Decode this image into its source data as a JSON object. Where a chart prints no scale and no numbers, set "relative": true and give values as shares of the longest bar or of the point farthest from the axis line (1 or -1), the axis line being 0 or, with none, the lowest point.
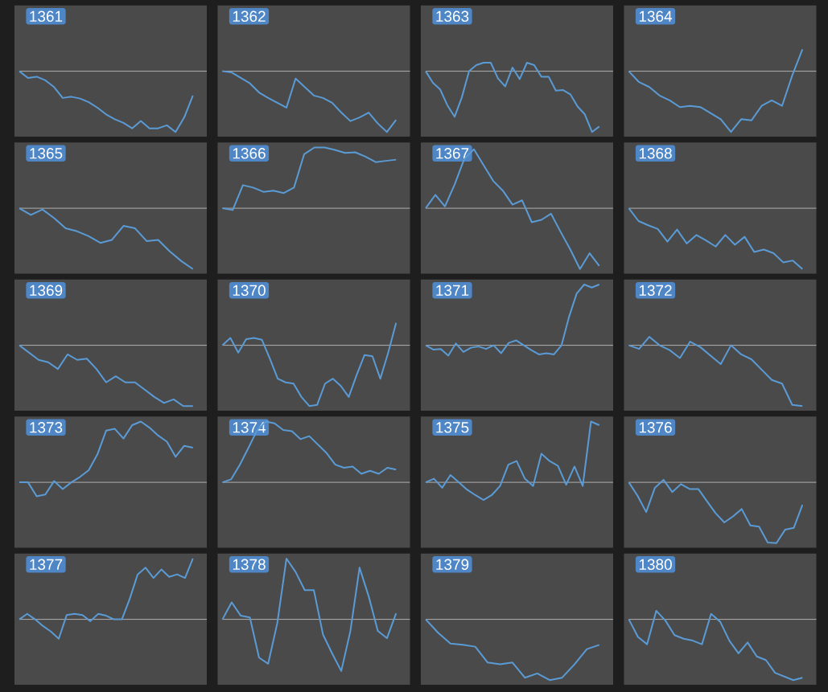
{
  "chart_data": [
    {
      "type": "line",
      "title": "1361",
      "categories": [
        null,
        null,
        null,
        null,
        null,
        null,
        null,
        null,
        null,
        null,
        null,
        null,
        null,
        null,
        null,
        null,
        null,
        null,
        null,
        null,
        null
      ],
      "values": [
        0,
        -0.11,
        -0.09,
        -0.15,
        -0.26,
        -0.44,
        -0.42,
        -0.45,
        -0.51,
        -0.6,
        -0.71,
        -0.79,
        -0.85,
        -0.94,
        -0.82,
        -0.94,
        -0.94,
        -0.89,
        -1,
        -0.76,
        -0.4
      ],
      "color": "#5b9bd5",
      "relative": true,
      "ref_lines": [
        {
          "axis": "y",
          "value": 0,
          "color": "#c8c8c8"
        }
      ]
    },
    {
      "type": "line",
      "title": "1362",
      "categories": [
        null,
        null,
        null,
        null,
        null,
        null,
        null,
        null,
        null,
        null,
        null,
        null,
        null,
        null,
        null,
        null,
        null,
        null,
        null,
        null
      ],
      "values": [
        0,
        -0.02,
        -0.11,
        -0.2,
        -0.35,
        -0.44,
        -0.52,
        -0.6,
        -0.12,
        -0.26,
        -0.4,
        -0.44,
        -0.52,
        -0.68,
        -0.82,
        -0.76,
        -0.68,
        -0.86,
        -1,
        -0.8
      ],
      "color": "#5b9bd5",
      "relative": true,
      "ref_lines": [
        {
          "axis": "y",
          "value": 0,
          "color": "#c8c8c8"
        }
      ]
    },
    {
      "type": "line",
      "title": "1363",
      "categories": [
        null,
        null,
        null,
        null,
        null,
        null,
        null,
        null,
        null,
        null,
        null,
        null,
        null,
        null,
        null,
        null,
        null,
        null,
        null,
        null,
        null,
        null,
        null,
        null,
        null
      ],
      "values": [
        0,
        -0.19,
        -0.3,
        -0.56,
        -0.75,
        -0.43,
        0,
        0.1,
        0.14,
        0.14,
        -0.12,
        -0.25,
        0.06,
        -0.13,
        0.14,
        0.1,
        -0.09,
        -0.09,
        -0.32,
        -0.31,
        -0.38,
        -0.58,
        -0.71,
        -1,
        -0.91
      ],
      "color": "#5b9bd5",
      "relative": true,
      "ref_lines": [
        {
          "axis": "y",
          "value": 0,
          "color": "#c8c8c8"
        }
      ]
    },
    {
      "type": "line",
      "title": "1364",
      "categories": [
        null,
        null,
        null,
        null,
        null,
        null,
        null,
        null,
        null,
        null,
        null,
        null,
        null,
        null,
        null,
        null,
        null,
        null
      ],
      "values": [
        0,
        -0.18,
        -0.26,
        -0.4,
        -0.48,
        -0.59,
        -0.57,
        -0.59,
        -0.69,
        -0.79,
        -1,
        -0.79,
        -0.81,
        -0.57,
        -0.48,
        -0.57,
        -0.07,
        0.36
      ],
      "color": "#5b9bd5",
      "relative": true,
      "ref_lines": [
        {
          "axis": "y",
          "value": 0,
          "color": "#c8c8c8"
        }
      ]
    },
    {
      "type": "line",
      "title": "1365",
      "categories": [
        null,
        null,
        null,
        null,
        null,
        null,
        null,
        null,
        null,
        null,
        null,
        null,
        null,
        null,
        null,
        null
      ],
      "values": [
        0,
        -0.11,
        -0.02,
        -0.16,
        -0.33,
        -0.38,
        -0.46,
        -0.57,
        -0.52,
        -0.29,
        -0.33,
        -0.54,
        -0.52,
        -0.71,
        -0.87,
        -1
      ],
      "color": "#5b9bd5",
      "relative": true,
      "ref_lines": [
        {
          "axis": "y",
          "value": 0,
          "color": "#c8c8c8"
        }
      ]
    },
    {
      "type": "line",
      "title": "1366",
      "categories": [
        null,
        null,
        null,
        null,
        null,
        null,
        null,
        null,
        null,
        null,
        null,
        null,
        null,
        null,
        null,
        null,
        null,
        null
      ],
      "values": [
        0,
        -0.03,
        0.38,
        0.34,
        0.27,
        0.29,
        0.25,
        0.34,
        0.89,
        1,
        1,
        0.96,
        0.91,
        0.92,
        0.85,
        0.76,
        0.78,
        0.8
      ],
      "color": "#5b9bd5",
      "relative": true,
      "ref_lines": [
        {
          "axis": "y",
          "value": 0,
          "color": "#c8c8c8"
        }
      ]
    },
    {
      "type": "line",
      "title": "1367",
      "categories": [
        null,
        null,
        null,
        null,
        null,
        null,
        null,
        null,
        null,
        null,
        null,
        null,
        null,
        null,
        null,
        null,
        null,
        null,
        null
      ],
      "values": [
        0,
        0.22,
        0.03,
        0.39,
        0.81,
        0.97,
        0.71,
        0.45,
        0.29,
        0.06,
        0.13,
        -0.23,
        -0.19,
        -0.09,
        -0.39,
        -0.68,
        -1,
        -0.74,
        -0.95
      ],
      "color": "#5b9bd5",
      "relative": true,
      "ref_lines": [
        {
          "axis": "y",
          "value": 0,
          "color": "#c8c8c8"
        }
      ]
    },
    {
      "type": "line",
      "title": "1368",
      "categories": [
        null,
        null,
        null,
        null,
        null,
        null,
        null,
        null,
        null,
        null,
        null,
        null,
        null,
        null,
        null,
        null,
        null,
        null,
        null
      ],
      "values": [
        0,
        -0.21,
        -0.28,
        -0.34,
        -0.55,
        -0.35,
        -0.58,
        -0.44,
        -0.53,
        -0.63,
        -0.44,
        -0.6,
        -0.47,
        -0.72,
        -0.68,
        -0.74,
        -0.89,
        -0.86,
        -1
      ],
      "color": "#5b9bd5",
      "relative": true,
      "ref_lines": [
        {
          "axis": "y",
          "value": 0,
          "color": "#c8c8c8"
        }
      ]
    },
    {
      "type": "line",
      "title": "1369",
      "categories": [
        null,
        null,
        null,
        null,
        null,
        null,
        null,
        null,
        null,
        null,
        null,
        null,
        null,
        null,
        null,
        null,
        null,
        null,
        null
      ],
      "values": [
        0,
        -0.12,
        -0.24,
        -0.28,
        -0.39,
        -0.15,
        -0.24,
        -0.22,
        -0.39,
        -0.61,
        -0.51,
        -0.61,
        -0.61,
        -0.73,
        -0.85,
        -0.95,
        -0.89,
        -1,
        -1
      ],
      "color": "#5b9bd5",
      "relative": true,
      "ref_lines": [
        {
          "axis": "y",
          "value": 0,
          "color": "#c8c8c8"
        }
      ]
    },
    {
      "type": "line",
      "title": "1370",
      "categories": [
        null,
        null,
        null,
        null,
        null,
        null,
        null,
        null,
        null,
        null,
        null,
        null,
        null,
        null,
        null,
        null,
        null,
        null,
        null,
        null,
        null,
        null,
        null
      ],
      "values": [
        0,
        0.12,
        -0.12,
        0.1,
        0.12,
        0.09,
        -0.22,
        -0.55,
        -0.61,
        -0.63,
        -0.85,
        -1,
        -0.98,
        -0.63,
        -0.55,
        -0.67,
        -0.85,
        -0.49,
        -0.16,
        -0.18,
        -0.55,
        -0.12,
        0.37
      ],
      "color": "#5b9bd5",
      "relative": true,
      "ref_lines": [
        {
          "axis": "y",
          "value": 0,
          "color": "#c8c8c8"
        }
      ]
    },
    {
      "type": "line",
      "title": "1371",
      "categories": [
        null,
        null,
        null,
        null,
        null,
        null,
        null,
        null,
        null,
        null,
        null,
        null,
        null,
        null,
        null,
        null,
        null,
        null,
        null,
        null,
        null,
        null,
        null,
        null
      ],
      "values": [
        0,
        -0.07,
        -0.06,
        -0.17,
        0.03,
        -0.11,
        -0.04,
        -0.02,
        -0.06,
        0,
        -0.13,
        0.04,
        0.08,
        0,
        -0.08,
        -0.15,
        -0.13,
        -0.15,
        0,
        0.47,
        0.85,
        1,
        0.95,
        1
      ],
      "color": "#5b9bd5",
      "relative": true,
      "ref_lines": [
        {
          "axis": "y",
          "value": 0,
          "color": "#c8c8c8"
        }
      ]
    },
    {
      "type": "line",
      "title": "1372",
      "categories": [
        null,
        null,
        null,
        null,
        null,
        null,
        null,
        null,
        null,
        null,
        null,
        null,
        null,
        null,
        null,
        null,
        null,
        null
      ],
      "values": [
        0,
        -0.06,
        0.14,
        0,
        -0.08,
        -0.21,
        0.06,
        -0.03,
        -0.17,
        -0.31,
        0,
        -0.15,
        -0.23,
        -0.4,
        -0.57,
        -0.63,
        -0.98,
        -1
      ],
      "color": "#5b9bd5",
      "relative": true,
      "ref_lines": [
        {
          "axis": "y",
          "value": 0,
          "color": "#c8c8c8"
        }
      ]
    },
    {
      "type": "line",
      "title": "1373",
      "categories": [
        null,
        null,
        null,
        null,
        null,
        null,
        null,
        null,
        null,
        null,
        null,
        null,
        null,
        null,
        null,
        null,
        null,
        null,
        null,
        null,
        null
      ],
      "values": [
        0,
        0,
        -0.23,
        -0.2,
        0.02,
        -0.11,
        0,
        0.09,
        0.2,
        0.46,
        0.85,
        0.88,
        0.72,
        0.94,
        1,
        0.9,
        0.77,
        0.67,
        0.42,
        0.6,
        0.57
      ],
      "color": "#5b9bd5",
      "relative": true,
      "ref_lines": [
        {
          "axis": "y",
          "value": 0,
          "color": "#c8c8c8"
        }
      ]
    },
    {
      "type": "line",
      "title": "1374",
      "categories": [
        null,
        null,
        null,
        null,
        null,
        null,
        null,
        null,
        null,
        null,
        null,
        null,
        null,
        null,
        null,
        null,
        null,
        null,
        null,
        null,
        null
      ],
      "values": [
        0,
        0.05,
        0.29,
        0.57,
        0.86,
        1,
        0.97,
        0.86,
        0.84,
        0.71,
        0.76,
        0.62,
        0.48,
        0.29,
        0.24,
        0.26,
        0.14,
        0.19,
        0.14,
        0.24,
        0.21
      ],
      "color": "#5b9bd5",
      "relative": true,
      "ref_lines": [
        {
          "axis": "y",
          "value": 0,
          "color": "#c8c8c8"
        }
      ]
    },
    {
      "type": "line",
      "title": "1375",
      "categories": [
        null,
        null,
        null,
        null,
        null,
        null,
        null,
        null,
        null,
        null,
        null,
        null,
        null,
        null,
        null,
        null,
        null,
        null,
        null,
        null,
        null,
        null
      ],
      "values": [
        0,
        0.06,
        -0.09,
        0.12,
        0,
        -0.12,
        -0.21,
        -0.29,
        -0.21,
        -0.06,
        0.29,
        0.35,
        0.06,
        -0.06,
        0.47,
        0.35,
        0.27,
        -0.04,
        0.26,
        -0.06,
        1,
        0.94
      ],
      "color": "#5b9bd5",
      "relative": true,
      "ref_lines": [
        {
          "axis": "y",
          "value": 0,
          "color": "#c8c8c8"
        }
      ]
    },
    {
      "type": "line",
      "title": "1376",
      "categories": [
        null,
        null,
        null,
        null,
        null,
        null,
        null,
        null,
        null,
        null,
        null,
        null,
        null,
        null,
        null,
        null,
        null,
        null,
        null,
        null,
        null
      ],
      "values": [
        0,
        -0.22,
        -0.49,
        -0.09,
        0.04,
        -0.16,
        -0.03,
        -0.11,
        -0.11,
        -0.31,
        -0.51,
        -0.66,
        -0.56,
        -0.44,
        -0.71,
        -0.73,
        -0.99,
        -1,
        -0.78,
        -0.75,
        -0.37
      ],
      "color": "#5b9bd5",
      "relative": true,
      "ref_lines": [
        {
          "axis": "y",
          "value": 0,
          "color": "#c8c8c8"
        }
      ]
    },
    {
      "type": "line",
      "title": "1377",
      "categories": [
        null,
        null,
        null,
        null,
        null,
        null,
        null,
        null,
        null,
        null,
        null,
        null,
        null,
        null,
        null,
        null,
        null,
        null,
        null,
        null,
        null,
        null,
        null
      ],
      "values": [
        0,
        0.09,
        0,
        -0.11,
        -0.2,
        -0.32,
        0.07,
        0.09,
        0.07,
        -0.03,
        0.09,
        0.06,
        0,
        0,
        0.34,
        0.74,
        0.85,
        0.68,
        0.82,
        0.7,
        0.74,
        0.68,
        1
      ],
      "color": "#5b9bd5",
      "relative": true,
      "ref_lines": [
        {
          "axis": "y",
          "value": 0,
          "color": "#c8c8c8"
        }
      ]
    },
    {
      "type": "line",
      "title": "1378",
      "categories": [
        null,
        null,
        null,
        null,
        null,
        null,
        null,
        null,
        null,
        null,
        null,
        null,
        null,
        null,
        null,
        null,
        null,
        null,
        null,
        null
      ],
      "values": [
        0,
        0.28,
        0.06,
        0.03,
        -0.63,
        -0.73,
        -0.06,
        1,
        0.78,
        0.48,
        0.48,
        -0.25,
        -0.56,
        -0.85,
        -0.19,
        0.85,
        0.38,
        -0.19,
        -0.31,
        0.1
      ],
      "color": "#5b9bd5",
      "relative": true,
      "ref_lines": [
        {
          "axis": "y",
          "value": 0,
          "color": "#c8c8c8"
        }
      ]
    },
    {
      "type": "line",
      "title": "1379",
      "categories": [
        null,
        null,
        null,
        null,
        null,
        null,
        null,
        null,
        null,
        null,
        null,
        null,
        null,
        null,
        null
      ],
      "values": [
        0,
        -0.22,
        -0.4,
        -0.42,
        -0.45,
        -0.71,
        -0.74,
        -0.71,
        -0.96,
        -0.89,
        -1,
        -0.96,
        -0.74,
        -0.49,
        -0.42
      ],
      "color": "#5b9bd5",
      "relative": true,
      "ref_lines": [
        {
          "axis": "y",
          "value": 0,
          "color": "#c8c8c8"
        }
      ]
    },
    {
      "type": "line",
      "title": "1380",
      "categories": [
        null,
        null,
        null,
        null,
        null,
        null,
        null,
        null,
        null,
        null,
        null,
        null,
        null,
        null,
        null,
        null,
        null,
        null,
        null,
        null
      ],
      "values": [
        0,
        -0.29,
        -0.41,
        0.14,
        -0.02,
        -0.26,
        -0.32,
        -0.35,
        -0.41,
        0.09,
        -0.04,
        -0.35,
        -0.56,
        -0.38,
        -0.61,
        -0.67,
        -0.88,
        -0.94,
        -1,
        -0.96
      ],
      "color": "#5b9bd5",
      "relative": true,
      "ref_lines": [
        {
          "axis": "y",
          "value": 0,
          "color": "#c8c8c8"
        }
      ]
    }
  ]
}
